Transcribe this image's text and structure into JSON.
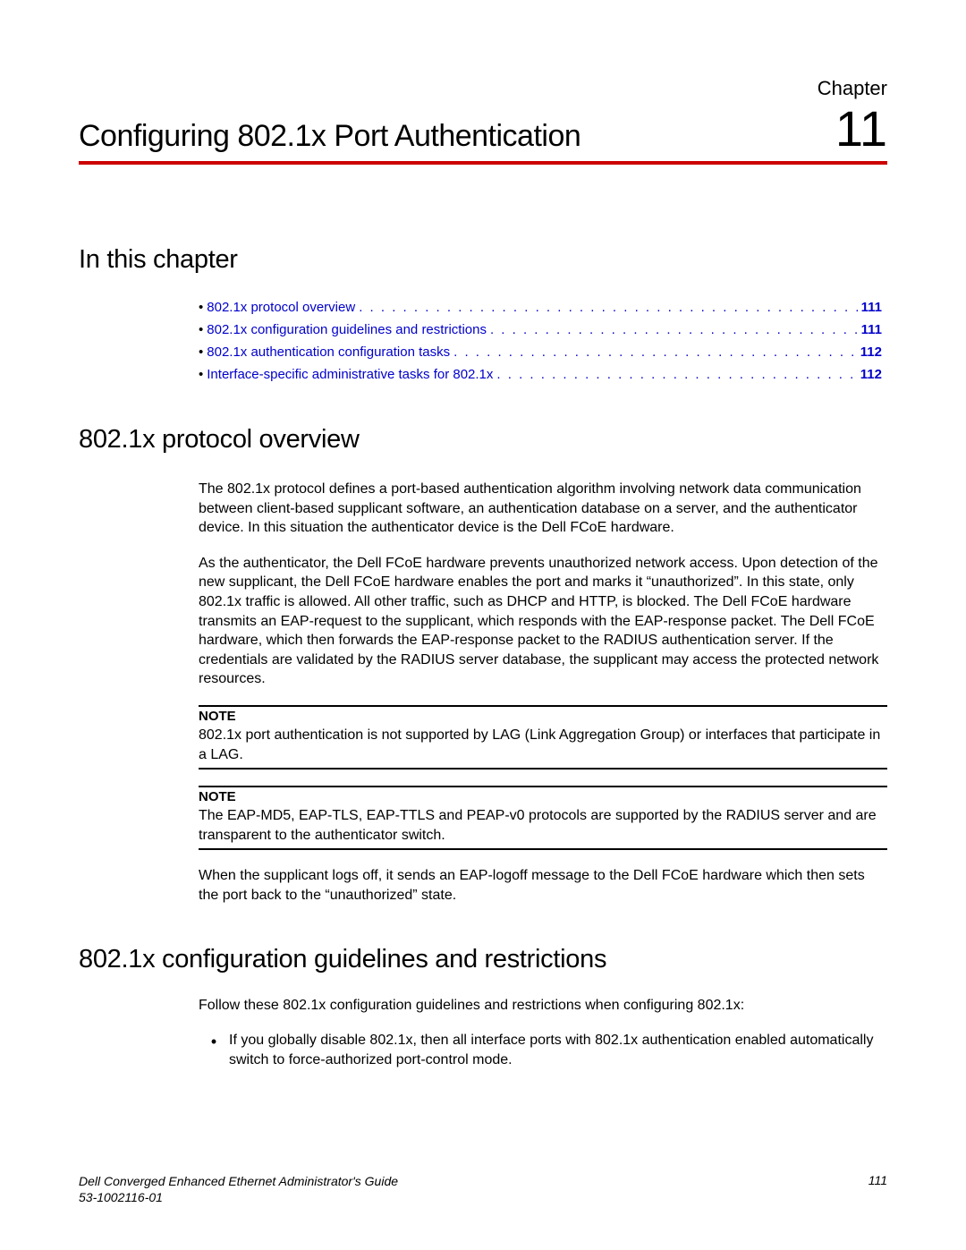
{
  "chapter": {
    "label": "Chapter",
    "number": "11",
    "title": "Configuring 802.1x Port Authentication"
  },
  "sections": {
    "in_this_chapter": "In this chapter",
    "protocol_overview": "802.1x protocol overview",
    "config_guidelines": "802.1x configuration guidelines and restrictions"
  },
  "toc": [
    {
      "label": "802.1x protocol overview",
      "page": "111"
    },
    {
      "label": "802.1x configuration guidelines and restrictions",
      "page": "111"
    },
    {
      "label": "802.1x authentication configuration tasks",
      "page": "112"
    },
    {
      "label": "Interface-specific administrative tasks for 802.1x",
      "page": "112"
    }
  ],
  "paragraphs": {
    "p1": "The 802.1x protocol defines a port-based authentication algorithm involving network data communication between client-based supplicant software, an authentication database on a server, and the authenticator device. In this situation the authenticator device is the Dell FCoE hardware.",
    "p2": "As the authenticator, the Dell FCoE hardware prevents unauthorized network access. Upon detection of the new supplicant, the Dell FCoE hardware enables the port and marks it “unauthorized”. In this state, only 802.1x traffic is allowed. All other traffic, such as DHCP and HTTP, is blocked. The Dell FCoE hardware transmits an EAP-request to the supplicant, which responds with the EAP-response packet. The Dell FCoE hardware, which then forwards the EAP-response packet to the RADIUS authentication server. If the credentials are validated by the RADIUS server database, the supplicant may access the protected network resources.",
    "p3": "When the supplicant logs off, it sends an EAP-logoff message to the Dell FCoE hardware which then sets the port back to the “unauthorized” state.",
    "p4": "Follow these 802.1x configuration guidelines and restrictions when configuring 802.1x:"
  },
  "notes": {
    "label": "NOTE",
    "n1": "802.1x port authentication is not supported by LAG (Link Aggregation Group) or interfaces that participate in a LAG.",
    "n2": "The EAP-MD5, EAP-TLS, EAP-TTLS and PEAP-v0 protocols are supported by the RADIUS server and are transparent to the authenticator switch."
  },
  "bullets": {
    "b1": "If you globally disable 802.1x, then all interface ports with 802.1x authentication enabled automatically switch to force-authorized port-control mode."
  },
  "footer": {
    "guide": "Dell Converged Enhanced Ethernet Administrator's Guide",
    "docnum": "53-1002116-01",
    "page": "111"
  },
  "colors": {
    "rule": "#cc0000",
    "link": "#0000cc",
    "text": "#000000",
    "background": "#ffffff"
  }
}
